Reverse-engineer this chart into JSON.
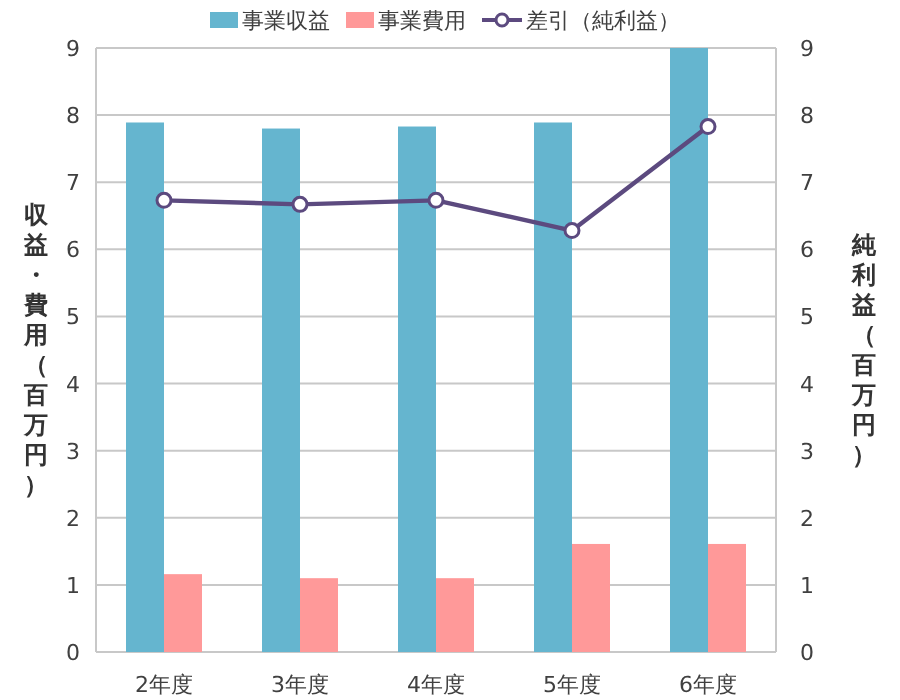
{
  "chart_data": {
    "type": "bar",
    "categories": [
      "2年度",
      "3年度",
      "4年度",
      "5年度",
      "6年度"
    ],
    "ylabel": "収益・費用（百万円）",
    "y2label": "純利益（百万円）",
    "ylim": [
      0,
      9
    ],
    "yticks": [
      0,
      1,
      2,
      3,
      4,
      5,
      6,
      7,
      8,
      9
    ],
    "y2lim": [
      0,
      9
    ],
    "y2ticks": [
      0,
      1,
      2,
      3,
      4,
      5,
      6,
      7,
      8,
      9
    ],
    "grid": "y",
    "legend": "top",
    "marker": "circle",
    "series": [
      {
        "name": "事業収益",
        "color": "#65b5cf",
        "values": [
          7.89,
          7.8,
          7.83,
          7.89,
          9.0
        ]
      },
      {
        "name": "事業費用",
        "color": "#ff9999",
        "values": [
          1.16,
          1.1,
          1.1,
          1.61,
          1.61
        ]
      },
      {
        "name": "差引（純利益）",
        "type": "line",
        "color": "#5c4a7f",
        "values": [
          6.73,
          6.67,
          6.73,
          6.28,
          7.83
        ]
      }
    ]
  }
}
